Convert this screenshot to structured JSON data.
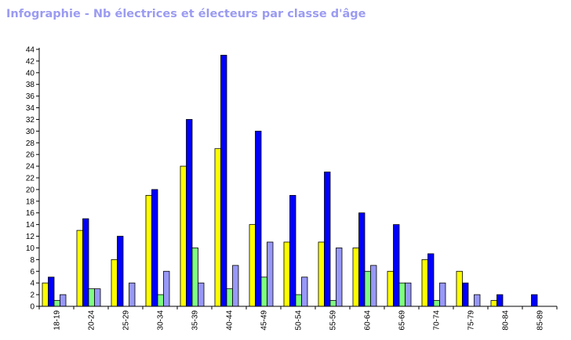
{
  "page": {
    "title": "Infographie - Nb électrices et électeurs par classe d'âge"
  },
  "chart_data": {
    "type": "bar",
    "title": "Infographie - Nb électrices et électeurs par classe d'âge",
    "xlabel": "",
    "ylabel": "",
    "ylim": [
      0,
      44
    ],
    "y_ticks": [
      0,
      2,
      4,
      6,
      8,
      10,
      12,
      14,
      16,
      18,
      20,
      22,
      24,
      26,
      28,
      30,
      32,
      34,
      36,
      38,
      40,
      42,
      44
    ],
    "grid": false,
    "legend": "none",
    "categories": [
      "18-19",
      "20-24",
      "25-29",
      "30-34",
      "35-39",
      "40-44",
      "45-49",
      "50-54",
      "55-59",
      "60-64",
      "65-69",
      "70-74",
      "75-79",
      "80-84",
      "85-89"
    ],
    "series": [
      {
        "color": "#ffff00",
        "values": [
          4,
          13,
          8,
          19,
          24,
          27,
          14,
          11,
          11,
          10,
          6,
          8,
          6,
          1,
          0
        ]
      },
      {
        "color": "#0000ff",
        "values": [
          5,
          15,
          12,
          20,
          32,
          43,
          30,
          19,
          23,
          16,
          14,
          9,
          4,
          2,
          2
        ]
      },
      {
        "color": "#80ff80",
        "values": [
          1,
          3,
          0,
          2,
          10,
          3,
          5,
          2,
          1,
          6,
          4,
          1,
          0,
          0,
          0
        ]
      },
      {
        "color": "#9898f8",
        "values": [
          2,
          3,
          4,
          6,
          4,
          7,
          11,
          5,
          10,
          7,
          4,
          4,
          2,
          0,
          0
        ]
      }
    ]
  }
}
